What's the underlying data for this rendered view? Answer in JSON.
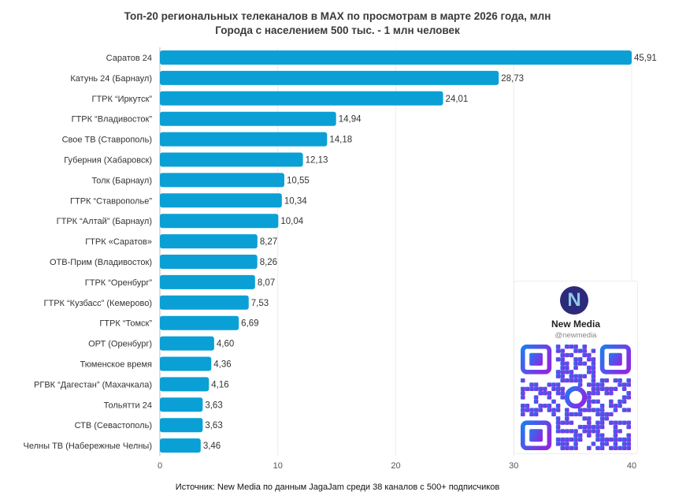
{
  "chart_data": {
    "type": "bar",
    "orientation": "horizontal",
    "title": "Топ-20 региональных телеканалов в MAX по просмотрам в марте 2026 года, млн",
    "subtitle": "Города с населением 500 тыс. - 1 млн человек",
    "categories": [
      "Саратов 24",
      "Катунь 24 (Барнаул)",
      "ГТРК “Иркутск”",
      "ГТРК “Владивосток”",
      "Свое ТВ (Ставрополь)",
      "Губерния (Хабаровск)",
      "Толк (Барнаул)",
      "ГТРК “Ставрополье”",
      "ГТРК “Алтай” (Барнаул)",
      "ГТРК «Саратов»",
      "ОТВ-Прим (Владивосток)",
      "ГТРК “Оренбург”",
      "ГТРК “Кузбасс” (Кемерово)",
      "ГТРК “Томск”",
      "ОРТ (Оренбург)",
      "Тюменское время",
      "РГВК “Дагестан” (Махачкала)",
      "Тольятти 24",
      "СТВ (Севастополь)",
      "Челны ТВ (Набережные Челны)"
    ],
    "values": [
      45.91,
      28.73,
      24.01,
      14.94,
      14.18,
      12.13,
      10.55,
      10.34,
      10.04,
      8.27,
      8.26,
      8.07,
      7.53,
      6.69,
      4.6,
      4.36,
      4.16,
      3.63,
      3.63,
      3.46
    ],
    "value_labels": [
      "45,91",
      "28,73",
      "24,01",
      "14,94",
      "14,18",
      "12,13",
      "10,55",
      "10,34",
      "10,04",
      "8,27",
      "8,26",
      "8,07",
      "7,53",
      "6,69",
      "4,60",
      "4,36",
      "4,16",
      "3,63",
      "3,63",
      "3,46"
    ],
    "xlim": [
      0,
      40
    ],
    "xticks": [
      0,
      10,
      20,
      30,
      40
    ],
    "grid": true,
    "bar_color": "#0aa0d6"
  },
  "source": "Источник: New Media по данным JagaJam среди 38 каналов с 500+ подписчиков",
  "promo": {
    "name": "New Media",
    "handle": "@newmedia",
    "logo_letter": "N",
    "qr_colors": [
      "#1e7bf0",
      "#8a2be2"
    ]
  }
}
